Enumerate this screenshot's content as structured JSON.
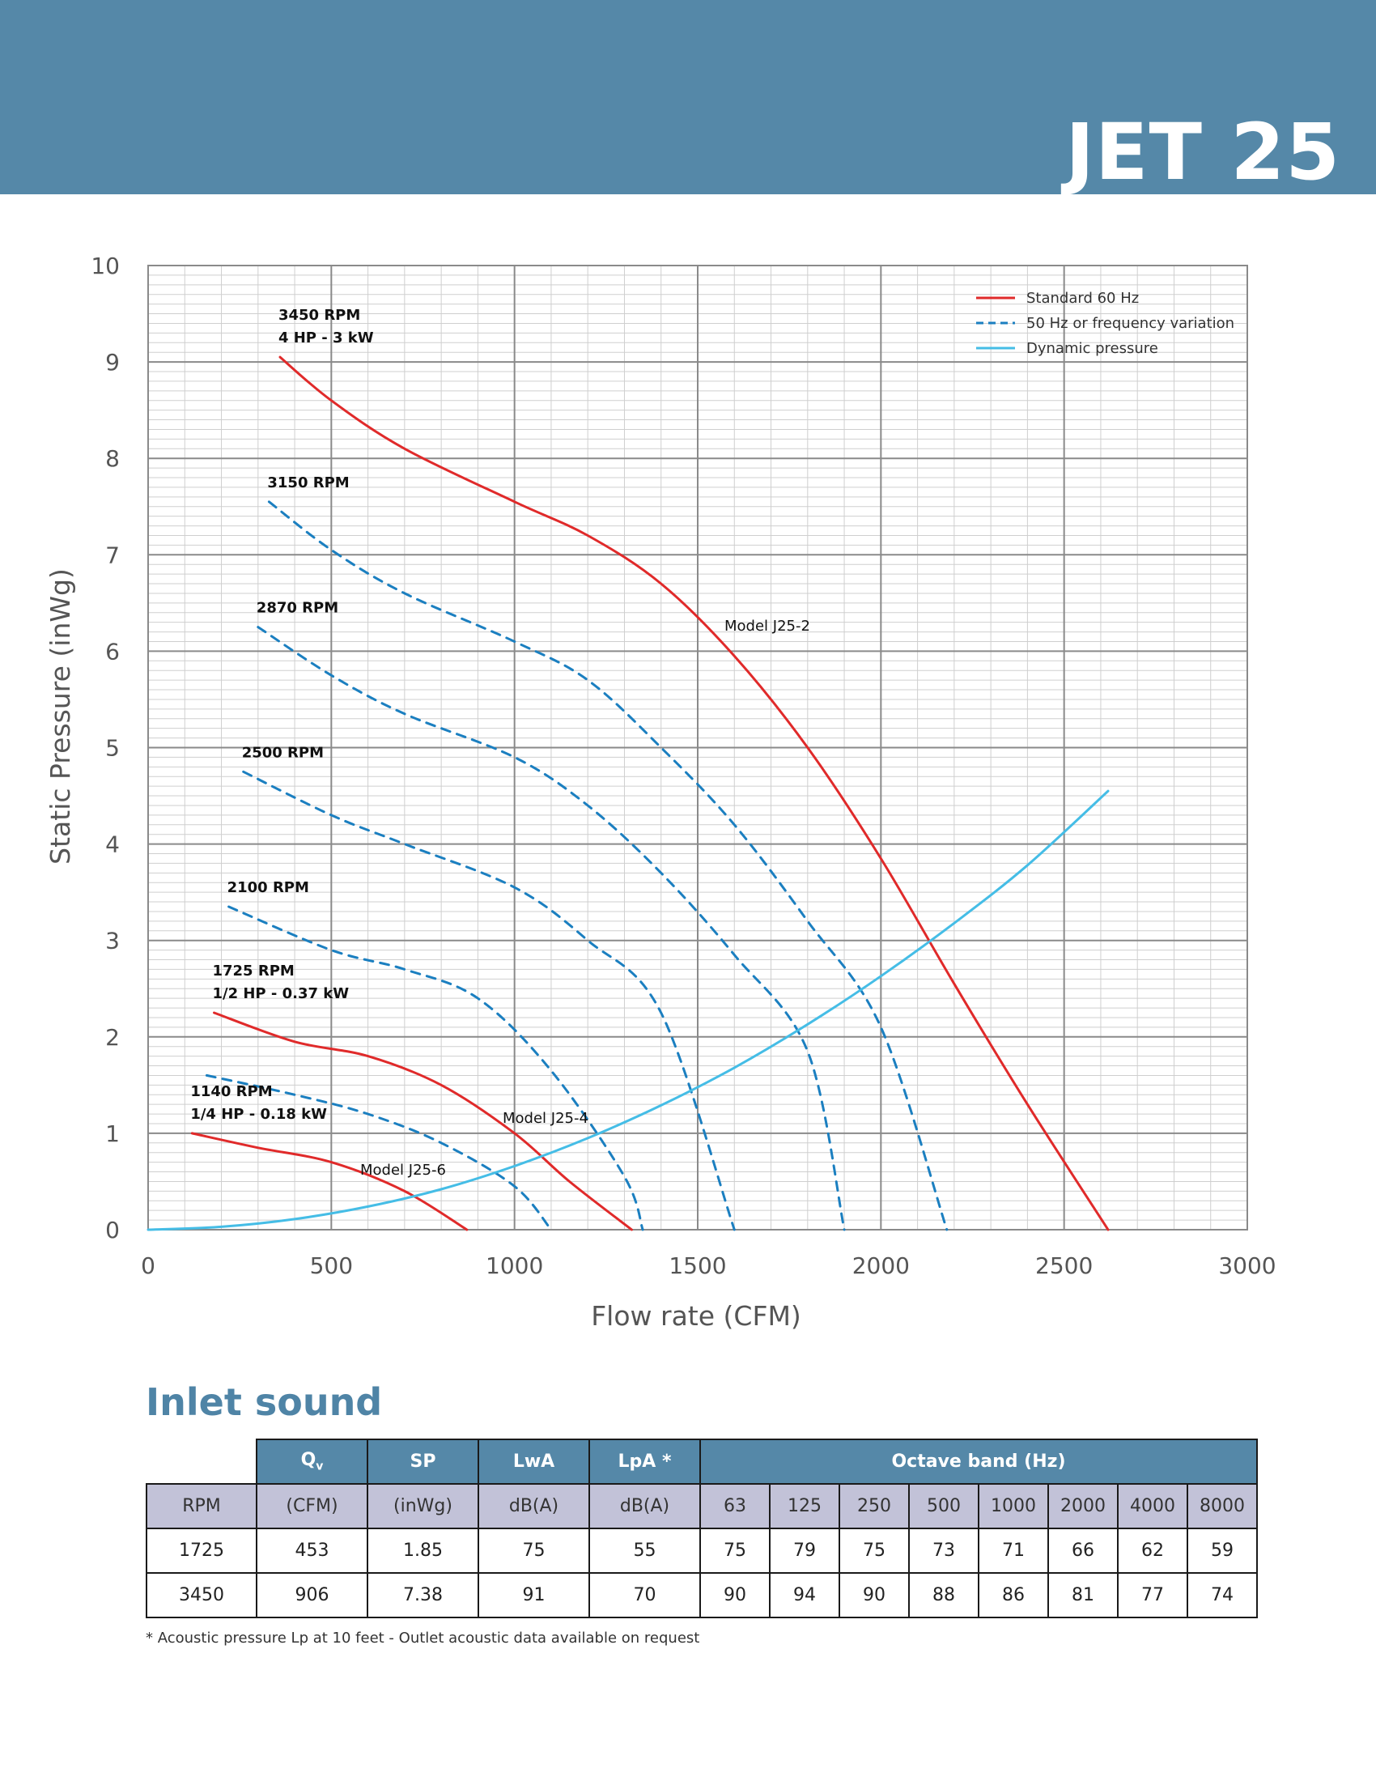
{
  "header": {
    "title": "JET 25"
  },
  "chart_data": {
    "type": "line",
    "title": "",
    "xlabel": "Flow rate (CFM)",
    "ylabel": "Static Pressure (inWg)",
    "xlim": [
      0,
      3000
    ],
    "ylim": [
      0,
      10
    ],
    "x_ticks": [
      "0",
      "500",
      "1000",
      "1500",
      "2000",
      "2500",
      "3000"
    ],
    "y_ticks": [
      "0",
      "1",
      "2",
      "3",
      "4",
      "5",
      "6",
      "7",
      "8",
      "9",
      "10"
    ],
    "grid": true,
    "legend_position": "top-right",
    "legend": [
      {
        "label": "Standard 60 Hz",
        "style": "solid",
        "color": "#e02a2a"
      },
      {
        "label": "50 Hz or frequency variation",
        "style": "dashed",
        "color": "#1b7fc0"
      },
      {
        "label": "Dynamic pressure",
        "style": "solid",
        "color": "#45bde6"
      }
    ],
    "series": [
      {
        "style": "standard",
        "label": [
          "3450 RPM",
          "4 HP - 3 kW"
        ],
        "points": [
          [
            360,
            9.05
          ],
          [
            500,
            8.6
          ],
          [
            700,
            8.1
          ],
          [
            1000,
            7.55
          ],
          [
            1200,
            7.2
          ],
          [
            1400,
            6.7
          ],
          [
            1600,
            5.95
          ],
          [
            1800,
            5.0
          ],
          [
            2000,
            3.85
          ],
          [
            2200,
            2.55
          ],
          [
            2400,
            1.3
          ],
          [
            2620,
            0.0
          ]
        ]
      },
      {
        "style": "variation",
        "label": [
          "3150 RPM"
        ],
        "points": [
          [
            330,
            7.55
          ],
          [
            500,
            7.05
          ],
          [
            700,
            6.6
          ],
          [
            1000,
            6.1
          ],
          [
            1200,
            5.7
          ],
          [
            1400,
            5.0
          ],
          [
            1600,
            4.2
          ],
          [
            1800,
            3.2
          ],
          [
            2000,
            2.1
          ],
          [
            2180,
            0.0
          ]
        ]
      },
      {
        "style": "variation",
        "label": [
          "2870 RPM"
        ],
        "points": [
          [
            300,
            6.25
          ],
          [
            500,
            5.75
          ],
          [
            700,
            5.35
          ],
          [
            1000,
            4.9
          ],
          [
            1200,
            4.4
          ],
          [
            1400,
            3.7
          ],
          [
            1600,
            2.85
          ],
          [
            1800,
            1.85
          ],
          [
            1900,
            0.0
          ]
        ]
      },
      {
        "style": "variation",
        "label": [
          "2500 RPM"
        ],
        "points": [
          [
            260,
            4.75
          ],
          [
            500,
            4.3
          ],
          [
            700,
            4.0
          ],
          [
            1000,
            3.55
          ],
          [
            1200,
            3.0
          ],
          [
            1400,
            2.25
          ],
          [
            1600,
            0.0
          ]
        ]
      },
      {
        "style": "variation",
        "label": [
          "2100 RPM"
        ],
        "points": [
          [
            220,
            3.35
          ],
          [
            500,
            2.9
          ],
          [
            700,
            2.7
          ],
          [
            900,
            2.4
          ],
          [
            1100,
            1.65
          ],
          [
            1300,
            0.55
          ],
          [
            1350,
            0.0
          ]
        ]
      },
      {
        "style": "standard",
        "label": [
          "1725 RPM",
          "1/2 HP - 0.37 kW"
        ],
        "points": [
          [
            180,
            2.25
          ],
          [
            400,
            1.95
          ],
          [
            600,
            1.8
          ],
          [
            800,
            1.5
          ],
          [
            1000,
            1.0
          ],
          [
            1150,
            0.5
          ],
          [
            1320,
            0.0
          ]
        ]
      },
      {
        "style": "variation",
        "label": [],
        "points": [
          [
            160,
            1.6
          ],
          [
            400,
            1.4
          ],
          [
            600,
            1.2
          ],
          [
            800,
            0.9
          ],
          [
            1000,
            0.45
          ],
          [
            1100,
            0.0
          ]
        ]
      },
      {
        "style": "standard",
        "label": [
          "1140 RPM",
          "1/4 HP - 0.18 kW"
        ],
        "points": [
          [
            120,
            1.0
          ],
          [
            300,
            0.85
          ],
          [
            500,
            0.7
          ],
          [
            700,
            0.4
          ],
          [
            870,
            0.0
          ]
        ]
      },
      {
        "style": "dynamic",
        "label": [],
        "points": [
          [
            0,
            0.0
          ],
          [
            200,
            0.03
          ],
          [
            400,
            0.11
          ],
          [
            600,
            0.24
          ],
          [
            800,
            0.42
          ],
          [
            1000,
            0.66
          ],
          [
            1200,
            0.95
          ],
          [
            1400,
            1.29
          ],
          [
            1600,
            1.68
          ],
          [
            1800,
            2.13
          ],
          [
            2000,
            2.63
          ],
          [
            2200,
            3.18
          ],
          [
            2400,
            3.78
          ],
          [
            2620,
            4.55
          ]
        ]
      }
    ],
    "annotations": [
      "Model J25-2",
      "Model J25-4",
      "Model J25-6"
    ]
  },
  "inlet_sound": {
    "title": "Inlet sound",
    "header_top": [
      "Q",
      "v",
      "SP",
      "LwA",
      "LpA *",
      "Octave band (Hz)"
    ],
    "header_units": [
      "RPM",
      "(CFM)",
      "(inWg)",
      "dB(A)",
      "dB(A)",
      "63",
      "125",
      "250",
      "500",
      "1000",
      "2000",
      "4000",
      "8000"
    ],
    "rows": [
      [
        "1725",
        "453",
        "1.85",
        "75",
        "55",
        "75",
        "79",
        "75",
        "73",
        "71",
        "66",
        "62",
        "59"
      ],
      [
        "3450",
        "906",
        "7.38",
        "91",
        "70",
        "90",
        "94",
        "90",
        "88",
        "86",
        "81",
        "77",
        "74"
      ]
    ],
    "footnote": "* Acoustic pressure Lp at 10 feet - Outlet acoustic data available on request"
  },
  "colors": {
    "banner": "#5588a8",
    "standard": "#e02a2a",
    "variation": "#1b7fc0",
    "dynamic": "#45bde6",
    "header_row2": "#c2c2d8"
  }
}
